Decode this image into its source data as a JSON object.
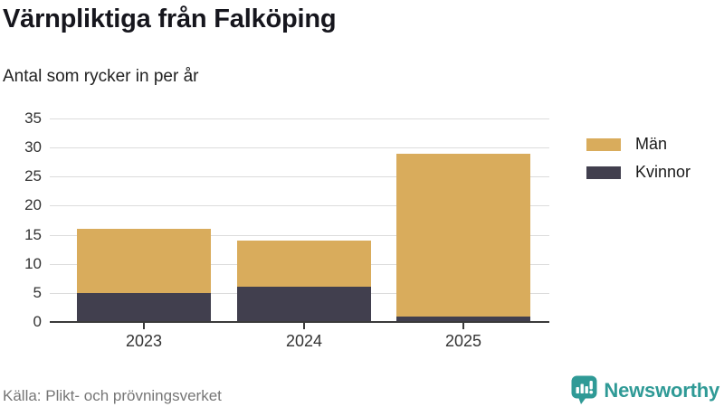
{
  "title": "Värnpliktiga från Falköping",
  "subtitle": "Antal som rycker in per år",
  "footer": {
    "source": "Källa: Plikt- och prövningsverket",
    "brand": "Newsworthy"
  },
  "colors": {
    "men_bar": "#d9ac5c",
    "women_bar": "#413f4e",
    "brand_teal": "#2f9a96",
    "gridline": "#dcdcdc",
    "axis": "#3a3a3a",
    "tick_label": "#333333",
    "source_text": "#767676"
  },
  "chart_data": {
    "type": "bar",
    "stacked": true,
    "categories": [
      "2023",
      "2024",
      "2025"
    ],
    "series": [
      {
        "name": "Män",
        "color": "#d9ac5c",
        "values": [
          11,
          8,
          28
        ]
      },
      {
        "name": "Kvinnor",
        "color": "#413f4e",
        "values": [
          5,
          6,
          1
        ]
      }
    ],
    "stack_order_bottom_to_top": [
      "Kvinnor",
      "Män"
    ],
    "totals": [
      16,
      14,
      29
    ],
    "title": "Värnpliktiga från Falköping",
    "subtitle": "Antal som rycker in per år",
    "xlabel": "",
    "ylabel": "",
    "ylim": [
      0,
      35
    ],
    "ytick_step": 5,
    "yticks": [
      0,
      5,
      10,
      15,
      20,
      25,
      30,
      35
    ],
    "grid": true,
    "legend_position": "right"
  }
}
